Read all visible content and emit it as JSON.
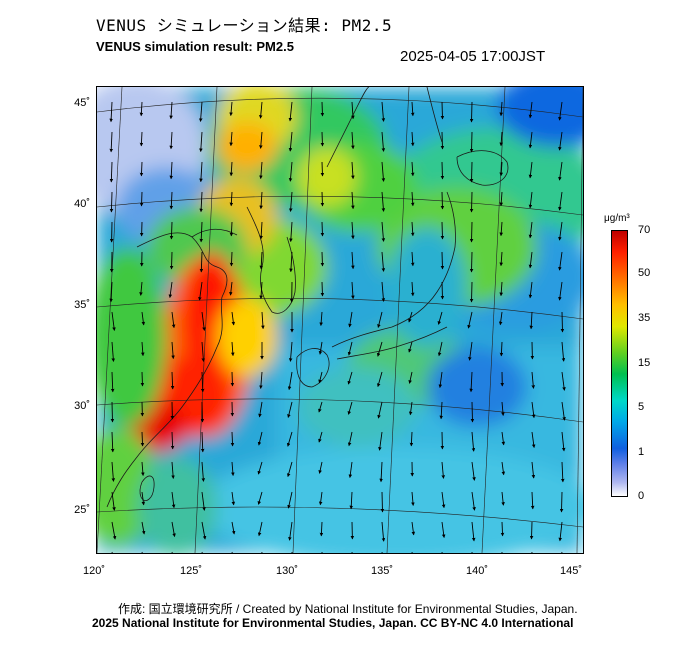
{
  "header": {
    "title_jp": "VENUS シミュレーション結果: PM2.5",
    "title_en": "VENUS simulation result: PM2.5",
    "timestamp": "2025-04-05 17:00JST"
  },
  "map": {
    "region": "East Asia / Japan",
    "lat_ticks": [
      "45˚",
      "40˚",
      "35˚",
      "30˚",
      "25˚"
    ],
    "lon_ticks": [
      "120˚",
      "125˚",
      "130˚",
      "135˚",
      "140˚",
      "145˚"
    ]
  },
  "colorbar": {
    "unit": "μg/m³",
    "labels": [
      "70",
      "50",
      "35",
      "15",
      "5",
      "1",
      "0"
    ],
    "colors": [
      "#c00000",
      "#ff7000",
      "#ffc000",
      "#60d020",
      "#00c050",
      "#00a8e8",
      "#1060e0",
      "#b0b8f0",
      "#ffffff"
    ]
  },
  "footer": {
    "credit_line": "作成: 国立環境研究所 / Created by National Institute for Environmental Studies, Japan.",
    "copyright_line": "2025 National Institute for Environmental Studies, Japan. CC BY-NC 4.0 International"
  }
}
